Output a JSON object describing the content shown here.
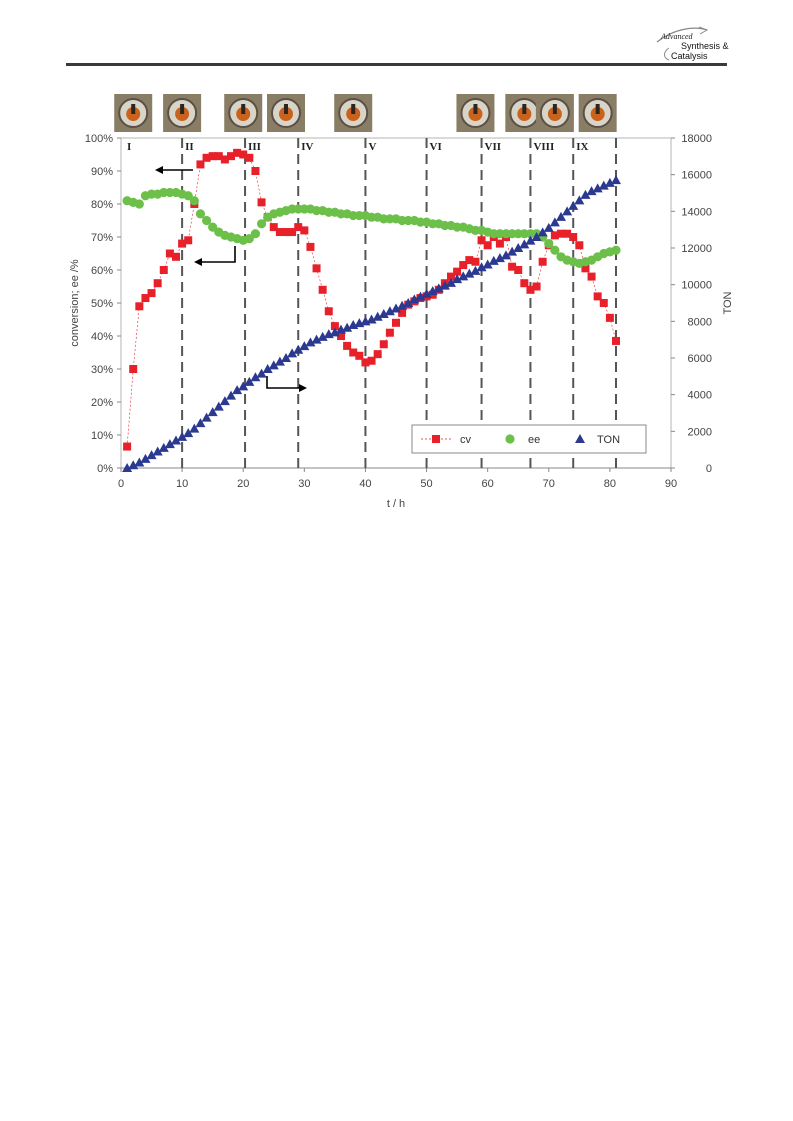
{
  "header": {
    "logo_line1": "Advanced",
    "logo_line2": "Synthesis &",
    "logo_line3": "Catalysis"
  },
  "chart_data": {
    "type": "scatter",
    "xlabel": "t / h",
    "ylabel_left": "conversion; ee /%",
    "ylabel_right": "TON",
    "xlim": [
      0,
      90
    ],
    "ylim_left": [
      0,
      100
    ],
    "ylim_right": [
      0,
      18000
    ],
    "x_ticks": [
      0,
      10,
      20,
      30,
      40,
      50,
      60,
      70,
      80,
      90
    ],
    "y_left_ticks": [
      "0%",
      "10%",
      "20%",
      "30%",
      "40%",
      "50%",
      "60%",
      "70%",
      "80%",
      "90%",
      "100%"
    ],
    "y_right_ticks": [
      0,
      2000,
      4000,
      6000,
      8000,
      10000,
      12000,
      14000,
      16000,
      18000
    ],
    "legend_position": "bottom-right",
    "phases": [
      {
        "label": "I",
        "x": 0.5
      },
      {
        "label": "II",
        "x": 10
      },
      {
        "label": "III",
        "x": 20.3
      },
      {
        "label": "IV",
        "x": 29
      },
      {
        "label": "V",
        "x": 40
      },
      {
        "label": "VI",
        "x": 50
      },
      {
        "label": "VII",
        "x": 59
      },
      {
        "label": "VIII",
        "x": 67
      },
      {
        "label": "IX",
        "x": 74
      }
    ],
    "photo_positions": [
      2,
      10,
      20,
      27,
      38,
      58,
      66,
      71,
      78
    ],
    "phase_lines": [
      10,
      20.3,
      29,
      40,
      50,
      59,
      67,
      74,
      81
    ],
    "series": [
      {
        "name": "cv",
        "marker": "square",
        "color": "#e8202a",
        "axis": "left",
        "x": [
          1,
          2,
          3,
          4,
          5,
          6,
          7,
          8,
          9,
          10,
          11,
          12,
          13,
          14,
          15,
          16,
          17,
          18,
          19,
          20,
          21,
          22,
          23,
          24,
          25,
          26,
          27,
          28,
          29,
          30,
          31,
          32,
          33,
          34,
          35,
          36,
          37,
          38,
          39,
          40,
          41,
          42,
          43,
          44,
          45,
          46,
          47,
          48,
          49,
          50,
          51,
          52,
          53,
          54,
          55,
          56,
          57,
          58,
          59,
          60,
          61,
          62,
          63,
          64,
          65,
          66,
          67,
          68,
          69,
          70,
          71,
          72,
          73,
          74,
          75,
          76,
          77,
          78,
          79,
          80,
          81
        ],
        "values": [
          6.5,
          30,
          49,
          51.5,
          53,
          56,
          60,
          65,
          64,
          68,
          69,
          80,
          92,
          94,
          94.5,
          94.5,
          93.5,
          94.5,
          95.5,
          95,
          94,
          90,
          80.5,
          76,
          73,
          71.5,
          71.5,
          71.5,
          73,
          72,
          67,
          60.5,
          54,
          47.5,
          43,
          40,
          37,
          35,
          34,
          32,
          32.5,
          34.5,
          37.5,
          41,
          44,
          47,
          49.5,
          50.5,
          51.5,
          52,
          52.5,
          54,
          56,
          58,
          59.5,
          61.5,
          63,
          62.5,
          69,
          67.5,
          70,
          68,
          70,
          61,
          60,
          56,
          54,
          55,
          62.5,
          67.5,
          70.5,
          71,
          71,
          70,
          67.5,
          60.5,
          58,
          52,
          50,
          45.5,
          38.5
        ]
      },
      {
        "name": "ee",
        "marker": "circle",
        "color": "#6cc04a",
        "axis": "left",
        "x": [
          1,
          2,
          3,
          4,
          5,
          6,
          7,
          8,
          9,
          10,
          11,
          12,
          13,
          14,
          15,
          16,
          17,
          18,
          19,
          20,
          21,
          22,
          23,
          24,
          25,
          26,
          27,
          28,
          29,
          30,
          31,
          32,
          33,
          34,
          35,
          36,
          37,
          38,
          39,
          40,
          41,
          42,
          43,
          44,
          45,
          46,
          47,
          48,
          49,
          50,
          51,
          52,
          53,
          54,
          55,
          56,
          57,
          58,
          59,
          60,
          61,
          62,
          63,
          64,
          65,
          66,
          67,
          68,
          69,
          70,
          71,
          72,
          73,
          74,
          75,
          76,
          77,
          78,
          79,
          80,
          81
        ],
        "values": [
          81,
          80.5,
          80,
          82.5,
          83,
          83,
          83.5,
          83.5,
          83.5,
          83,
          82.5,
          81,
          77,
          75,
          73,
          71.5,
          70.5,
          70,
          69.5,
          69,
          69.5,
          71,
          74,
          76,
          77,
          77.5,
          78,
          78.5,
          78.5,
          78.5,
          78.5,
          78,
          78,
          77.5,
          77.5,
          77,
          77,
          76.5,
          76.5,
          76.5,
          76,
          76,
          75.5,
          75.5,
          75.5,
          75,
          75,
          75,
          74.5,
          74.5,
          74,
          74,
          73.5,
          73.5,
          73,
          73,
          72.5,
          72,
          72,
          71.5,
          71,
          71,
          71,
          71,
          71,
          71,
          71,
          71,
          70,
          68,
          66,
          64,
          63,
          62.5,
          62,
          62.5,
          63,
          64,
          65,
          65.5,
          66
        ]
      },
      {
        "name": "TON",
        "marker": "triangle",
        "color": "#2b3990",
        "axis": "right",
        "x": [
          1,
          2,
          3,
          4,
          5,
          6,
          7,
          8,
          9,
          10,
          11,
          12,
          13,
          14,
          15,
          16,
          17,
          18,
          19,
          20,
          21,
          22,
          23,
          24,
          25,
          26,
          27,
          28,
          29,
          30,
          31,
          32,
          33,
          34,
          35,
          36,
          37,
          38,
          39,
          40,
          41,
          42,
          43,
          44,
          45,
          46,
          47,
          48,
          49,
          50,
          51,
          52,
          53,
          54,
          55,
          56,
          57,
          58,
          59,
          60,
          61,
          62,
          63,
          64,
          65,
          66,
          67,
          68,
          69,
          70,
          71,
          72,
          73,
          74,
          75,
          76,
          77,
          78,
          79,
          80,
          81
        ],
        "values": [
          0,
          150,
          300,
          500,
          700,
          900,
          1100,
          1300,
          1500,
          1700,
          1900,
          2150,
          2450,
          2750,
          3050,
          3350,
          3650,
          3950,
          4250,
          4450,
          4700,
          4950,
          5150,
          5400,
          5600,
          5800,
          6000,
          6250,
          6450,
          6650,
          6850,
          7000,
          7150,
          7300,
          7400,
          7550,
          7650,
          7800,
          7900,
          8000,
          8100,
          8250,
          8400,
          8550,
          8700,
          8850,
          9000,
          9200,
          9350,
          9500,
          9650,
          9800,
          9950,
          10100,
          10300,
          10450,
          10600,
          10750,
          10950,
          11100,
          11300,
          11450,
          11600,
          11800,
          12000,
          12200,
          12400,
          12600,
          12850,
          13100,
          13400,
          13700,
          14000,
          14300,
          14600,
          14900,
          15100,
          15250,
          15400,
          15550,
          15700
        ]
      }
    ],
    "legend": [
      "cv",
      "ee",
      "TON"
    ]
  }
}
